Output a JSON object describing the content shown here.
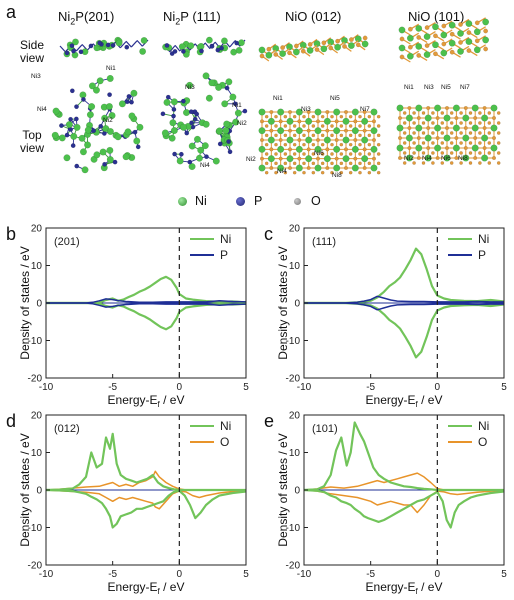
{
  "panel_a": {
    "letter": "a",
    "columns": [
      {
        "prefix": "Ni",
        "sub": "2",
        "suffix": "P(201)"
      },
      {
        "prefix": "Ni",
        "sub": "2",
        "suffix": "P (111)"
      },
      {
        "prefix": "NiO (012)",
        "sub": "",
        "suffix": ""
      },
      {
        "prefix": "NiO (101)",
        "sub": "",
        "suffix": ""
      }
    ],
    "side_view": [
      "Side",
      "view"
    ],
    "top_view": [
      "Top",
      "view"
    ],
    "atom_labels": {
      "ni2p_201": [
        "Ni3",
        "Ni1",
        "Ni4",
        "Ni2"
      ],
      "ni2p_111": [
        "Ni3",
        "Ni1",
        "Ni2",
        "Ni4"
      ],
      "nio_012": [
        "Ni1",
        "Ni3",
        "Ni5",
        "Ni7",
        "Ni6",
        "Ni2",
        "Ni4",
        "Ni8"
      ],
      "nio_101": [
        "Ni1",
        "Ni3",
        "Ni5",
        "Ni7",
        "Ni2",
        "Ni4",
        "Ni6",
        "Ni8"
      ]
    },
    "legend": [
      {
        "label": "Ni",
        "color": "#3fae3f"
      },
      {
        "label": "P",
        "color": "#2a2e8c"
      },
      {
        "label": "O",
        "color": "#8a8a8a"
      }
    ],
    "colors": {
      "ni": "#4cc04c",
      "p": "#2b3190",
      "o_atom": "#e29a3a",
      "bond_green": "#3a9a3a",
      "bond_blue": "#2b3190"
    }
  },
  "dos_panels": [
    {
      "letter": "b",
      "surface": "(201)",
      "ylabel": "Density of states / eV",
      "xlabel_main": "Energy-E",
      "xlabel_sub": "f",
      "xlabel_unit": " / eV",
      "xticks": [
        "-10",
        "-5",
        "0",
        "5"
      ],
      "yticks": [
        "20",
        "10",
        "0",
        "-10",
        "-20"
      ],
      "legend": [
        {
          "label": "Ni",
          "color": "#72c45a"
        },
        {
          "label": "P",
          "color": "#1f2f96"
        }
      ]
    },
    {
      "letter": "c",
      "surface": "(111)",
      "ylabel": "Density of states / eV",
      "xlabel_main": "Energy-E",
      "xlabel_sub": "f",
      "xlabel_unit": " / eV",
      "xticks": [
        "-10",
        "-5",
        "0",
        "5"
      ],
      "yticks": [
        "20",
        "10",
        "0",
        "-10",
        "-20"
      ],
      "legend": [
        {
          "label": "Ni",
          "color": "#72c45a"
        },
        {
          "label": "P",
          "color": "#1f2f96"
        }
      ]
    },
    {
      "letter": "d",
      "surface": "(012)",
      "ylabel": "Density of states / eV",
      "xlabel_main": "Energy-E",
      "xlabel_sub": "f",
      "xlabel_unit": " / eV",
      "xticks": [
        "-10",
        "-5",
        "0",
        "5"
      ],
      "yticks": [
        "20",
        "10",
        "0",
        "-10",
        "-20"
      ],
      "legend": [
        {
          "label": "Ni",
          "color": "#72c45a"
        },
        {
          "label": "O",
          "color": "#e8942a"
        }
      ]
    },
    {
      "letter": "e",
      "surface": "(101)",
      "ylabel": "Density of states / eV",
      "xlabel_main": "Energy-E",
      "xlabel_sub": "f",
      "xlabel_unit": " / eV",
      "xticks": [
        "-10",
        "-5",
        "0",
        "5"
      ],
      "yticks": [
        "20",
        "10",
        "0",
        "-10",
        "-20"
      ],
      "legend": [
        {
          "label": "Ni",
          "color": "#72c45a"
        },
        {
          "label": "O",
          "color": "#e8942a"
        }
      ]
    }
  ],
  "chart_data": [
    {
      "type": "line",
      "panel": "b",
      "xlim": [
        -10,
        5
      ],
      "ylim": [
        -20,
        20
      ],
      "fermi_level": 0,
      "series": [
        {
          "name": "Ni",
          "x": [
            -10,
            -7,
            -6,
            -5.5,
            -5,
            -4.6,
            -4.2,
            -3.8,
            -3.4,
            -3,
            -2.6,
            -2.2,
            -1.8,
            -1.4,
            -1,
            -0.6,
            -0.2,
            0,
            0.5,
            1,
            2,
            3,
            4,
            5
          ],
          "y_up": [
            0,
            0,
            0.1,
            0.8,
            1.2,
            0.6,
            0.9,
            1.6,
            2.2,
            3,
            3.6,
            4.4,
            5.4,
            6.4,
            7,
            6.2,
            4,
            2.4,
            1.2,
            0.9,
            0.5,
            0.3,
            0.4,
            0.2
          ],
          "y_down": [
            0,
            0,
            -0.1,
            -0.8,
            -1.2,
            -0.6,
            -0.9,
            -1.6,
            -2.2,
            -3,
            -3.6,
            -4.4,
            -5.4,
            -6.4,
            -7,
            -6.2,
            -4,
            -2.4,
            -1.2,
            -0.9,
            -0.5,
            -0.3,
            -0.4,
            -0.2
          ]
        },
        {
          "name": "P",
          "x": [
            -10,
            -7,
            -6.5,
            -6,
            -5.5,
            -5,
            -4.5,
            -4,
            -3,
            -2,
            -1,
            0,
            1,
            2,
            3,
            4,
            5
          ],
          "y_up": [
            0,
            0,
            0.2,
            0.6,
            1.1,
            0.9,
            0.6,
            0.4,
            0.2,
            0.2,
            0.3,
            0.3,
            0.3,
            0.3,
            0.6,
            0.4,
            0.3
          ],
          "y_down": [
            0,
            0,
            -0.2,
            -0.6,
            -1.1,
            -0.9,
            -0.6,
            -0.4,
            -0.2,
            -0.2,
            -0.3,
            -0.3,
            -0.3,
            -0.3,
            -0.6,
            -0.4,
            -0.3
          ]
        }
      ]
    },
    {
      "type": "line",
      "panel": "c",
      "xlim": [
        -10,
        5
      ],
      "ylim": [
        -20,
        20
      ],
      "fermi_level": 0,
      "series": [
        {
          "name": "Ni",
          "x": [
            -10,
            -7,
            -6,
            -5,
            -4.5,
            -4,
            -3.6,
            -3.2,
            -2.8,
            -2.4,
            -2,
            -1.6,
            -1.2,
            -0.8,
            -0.4,
            0,
            0.5,
            1,
            2,
            3,
            4,
            5
          ],
          "y_up": [
            0,
            0,
            0.2,
            0.6,
            1.5,
            3,
            4.5,
            5.5,
            6.8,
            9,
            11.5,
            14.5,
            13,
            9,
            4.5,
            2,
            1.2,
            0.8,
            0.6,
            0.5,
            0.8,
            0.4
          ],
          "y_down": [
            0,
            0,
            -0.2,
            -0.6,
            -1.5,
            -3,
            -4.5,
            -5.5,
            -6.8,
            -9,
            -11.5,
            -14.5,
            -13,
            -9,
            -4.5,
            -2,
            -1.2,
            -0.8,
            -0.6,
            -0.5,
            -0.8,
            -0.4
          ]
        },
        {
          "name": "P",
          "x": [
            -10,
            -7,
            -6,
            -5.5,
            -5,
            -4.5,
            -4,
            -3.5,
            -3,
            -2,
            -1,
            0,
            1,
            2,
            3,
            4,
            5
          ],
          "y_up": [
            0,
            0,
            0.2,
            0.5,
            0.9,
            1.8,
            1.3,
            0.8,
            0.5,
            0.4,
            0.4,
            0.3,
            0.3,
            0.3,
            0.4,
            0.3,
            0.3
          ],
          "y_down": [
            0,
            0,
            -0.2,
            -0.5,
            -0.9,
            -1.8,
            -1.3,
            -0.8,
            -0.5,
            -0.4,
            -0.4,
            -0.3,
            -0.3,
            -0.3,
            -0.4,
            -0.3,
            -0.3
          ]
        }
      ]
    },
    {
      "type": "line",
      "panel": "d",
      "xlim": [
        -10,
        5
      ],
      "ylim": [
        -20,
        20
      ],
      "fermi_level": 0,
      "series": [
        {
          "name": "Ni",
          "x": [
            -10,
            -9,
            -8,
            -7.5,
            -7,
            -6.6,
            -6.2,
            -5.8,
            -5.5,
            -5.2,
            -5,
            -4.7,
            -4.4,
            -4,
            -3.6,
            -3.2,
            -2.8,
            -2.4,
            -2,
            -1.6,
            -1.2,
            -0.8,
            -0.4,
            0,
            0.4,
            0.8,
            1.2,
            1.6,
            2,
            2.5,
            3,
            4,
            5
          ],
          "y_up": [
            0,
            0.1,
            0.4,
            1.5,
            3.5,
            10,
            6,
            7,
            14,
            11,
            15,
            7,
            4,
            3,
            2.5,
            2,
            2.5,
            3,
            4,
            2,
            1,
            0.5,
            0.2,
            0,
            0,
            0,
            0,
            0,
            0,
            0,
            0,
            0,
            0
          ],
          "y_down": [
            0,
            -0.1,
            -0.3,
            -0.6,
            -1,
            -1.8,
            -2.5,
            -3.5,
            -5,
            -7,
            -10,
            -9,
            -7,
            -6.5,
            -6,
            -5,
            -5,
            -4.5,
            -4,
            -3.5,
            -3,
            -1.5,
            -0.5,
            -0.2,
            -1.5,
            -4,
            -7.5,
            -6,
            -4,
            -2.5,
            -1.5,
            -0.8,
            -0.4
          ]
        },
        {
          "name": "O",
          "x": [
            -10,
            -9,
            -8,
            -7,
            -6,
            -5.5,
            -5,
            -4.5,
            -4,
            -3.5,
            -3,
            -2.5,
            -2,
            -1.8,
            -1.5,
            -1,
            -0.5,
            0,
            0.5,
            1,
            1.5,
            2,
            3,
            4,
            5
          ],
          "y_up": [
            0,
            0.2,
            0.5,
            0.8,
            1,
            1.5,
            2,
            1,
            1.5,
            1,
            2,
            2.5,
            3.5,
            5,
            3.5,
            2,
            1,
            0.3,
            0,
            0,
            0,
            0,
            0,
            0,
            0
          ],
          "y_down": [
            0,
            -0.2,
            -0.4,
            -0.6,
            -1,
            -2,
            -3,
            -2,
            -2.5,
            -2,
            -2.5,
            -3,
            -3.5,
            -4.5,
            -5,
            -3,
            -1,
            -0.3,
            -0.5,
            -1.5,
            -2,
            -1.5,
            -0.8,
            -0.4,
            -0.2
          ]
        }
      ]
    },
    {
      "type": "line",
      "panel": "e",
      "xlim": [
        -10,
        5
      ],
      "ylim": [
        -20,
        20
      ],
      "fermi_level": 0,
      "series": [
        {
          "name": "Ni",
          "x": [
            -10,
            -9,
            -8.5,
            -8,
            -7.6,
            -7.2,
            -6.8,
            -6.5,
            -6.2,
            -5.8,
            -5.5,
            -5.2,
            -4.8,
            -4.4,
            -4,
            -3.5,
            -3,
            -2.5,
            -2,
            -1.5,
            -1,
            -0.5,
            0,
            0.4,
            0.7,
            1,
            1.3,
            1.6,
            2,
            2.5,
            3,
            4,
            5
          ],
          "y_up": [
            0,
            0.2,
            1,
            4,
            10.5,
            14,
            6.5,
            10,
            18,
            15,
            13,
            10,
            6,
            4,
            3,
            2,
            1.5,
            1,
            0.8,
            0.5,
            0.3,
            0.2,
            0,
            0,
            0,
            0,
            0,
            0,
            0,
            0,
            0,
            0,
            0
          ],
          "y_down": [
            0,
            -0.2,
            -0.5,
            -1.5,
            -2,
            -3,
            -3.5,
            -4,
            -5,
            -6,
            -7,
            -7.5,
            -8,
            -8.5,
            -8,
            -7,
            -6,
            -5,
            -4,
            -3,
            -2.5,
            -1.5,
            -0.5,
            -3,
            -8,
            -10,
            -6,
            -4,
            -3,
            -2,
            -1.5,
            -0.8,
            -0.4
          ]
        },
        {
          "name": "O",
          "x": [
            -10,
            -9,
            -8,
            -7,
            -6,
            -5,
            -4.5,
            -4,
            -3.5,
            -3,
            -2.5,
            -2,
            -1.5,
            -1,
            -0.5,
            0,
            0.5,
            1,
            1.5,
            2,
            3,
            4,
            5
          ],
          "y_up": [
            0,
            0.3,
            0.8,
            0.5,
            1,
            2,
            2.5,
            2,
            2.5,
            3,
            3.5,
            4,
            4.5,
            3.5,
            2,
            0.4,
            0,
            0,
            0,
            0,
            0,
            0,
            0
          ],
          "y_down": [
            0,
            -0.3,
            -1,
            -1.5,
            -2,
            -3,
            -4,
            -3.5,
            -3,
            -3.5,
            -4,
            -4,
            -6,
            -4,
            -1.5,
            -0.3,
            -0.5,
            -1,
            -1.2,
            -1,
            -0.6,
            -0.3,
            -0.2
          ]
        }
      ]
    }
  ]
}
